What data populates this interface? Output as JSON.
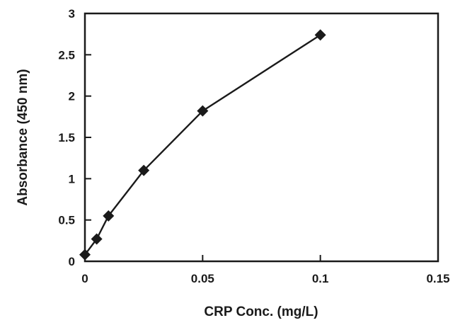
{
  "chart_data": {
    "type": "line",
    "title": "",
    "xlabel": "CRP Conc. (mg/L)",
    "ylabel": "Absorbance (450 nm)",
    "xlim": [
      0,
      0.15
    ],
    "ylim": [
      0,
      3
    ],
    "xticks": [
      0,
      0.05,
      0.1,
      0.15
    ],
    "xtick_labels": [
      "0",
      "0.05",
      "0.1",
      "0.15"
    ],
    "yticks": [
      0,
      0.5,
      1,
      1.5,
      2,
      2.5,
      3
    ],
    "ytick_labels": [
      "0",
      "0.5",
      "1",
      "1.5",
      "2",
      "2.5",
      "3"
    ],
    "grid": false,
    "legend": "none",
    "marker": "diamond",
    "series": [
      {
        "x": [
          0,
          0.005,
          0.01,
          0.025,
          0.05,
          0.1
        ],
        "y": [
          0.08,
          0.27,
          0.55,
          1.1,
          1.82,
          2.74
        ]
      }
    ],
    "colors": {
      "line": "#1a1a1a",
      "marker": "#1a1a1a",
      "frame": "#1a1a1a"
    }
  }
}
